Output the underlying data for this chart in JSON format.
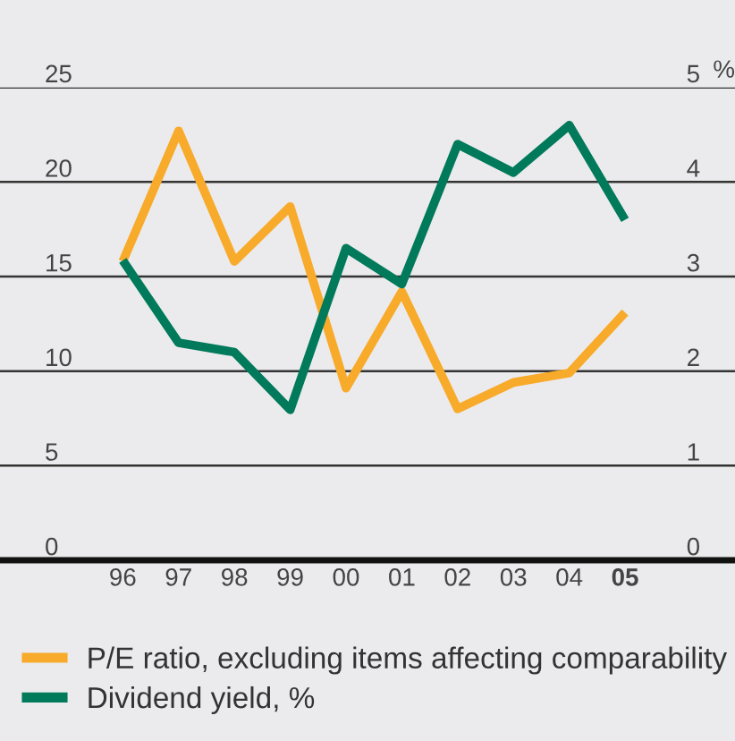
{
  "chart_data": {
    "type": "line",
    "categories": [
      "96",
      "97",
      "98",
      "99",
      "00",
      "01",
      "02",
      "03",
      "04",
      "05"
    ],
    "series": [
      {
        "name": "P/E ratio, excluding items affecting comparability",
        "color": "#f8aa2a",
        "values": [
          15.8,
          22.7,
          15.8,
          18.7,
          9.1,
          14.2,
          8.0,
          9.4,
          9.9,
          13.1
        ]
      },
      {
        "name": "Dividend yield, %",
        "color": "#007a5a",
        "axis": "y2",
        "values": [
          3.17,
          2.3,
          2.2,
          1.59,
          3.3,
          2.92,
          4.4,
          4.1,
          4.6,
          3.6
        ]
      }
    ],
    "ylim": [
      0,
      25
    ],
    "yticks": [
      0,
      5,
      10,
      15,
      20,
      25
    ],
    "y2lim": [
      0,
      5
    ],
    "y2ticks": [
      0,
      1,
      2,
      3,
      4,
      5
    ],
    "y2label": "%",
    "grid": "y",
    "legend": "bottom",
    "marker": "none",
    "line_style": "solid"
  }
}
